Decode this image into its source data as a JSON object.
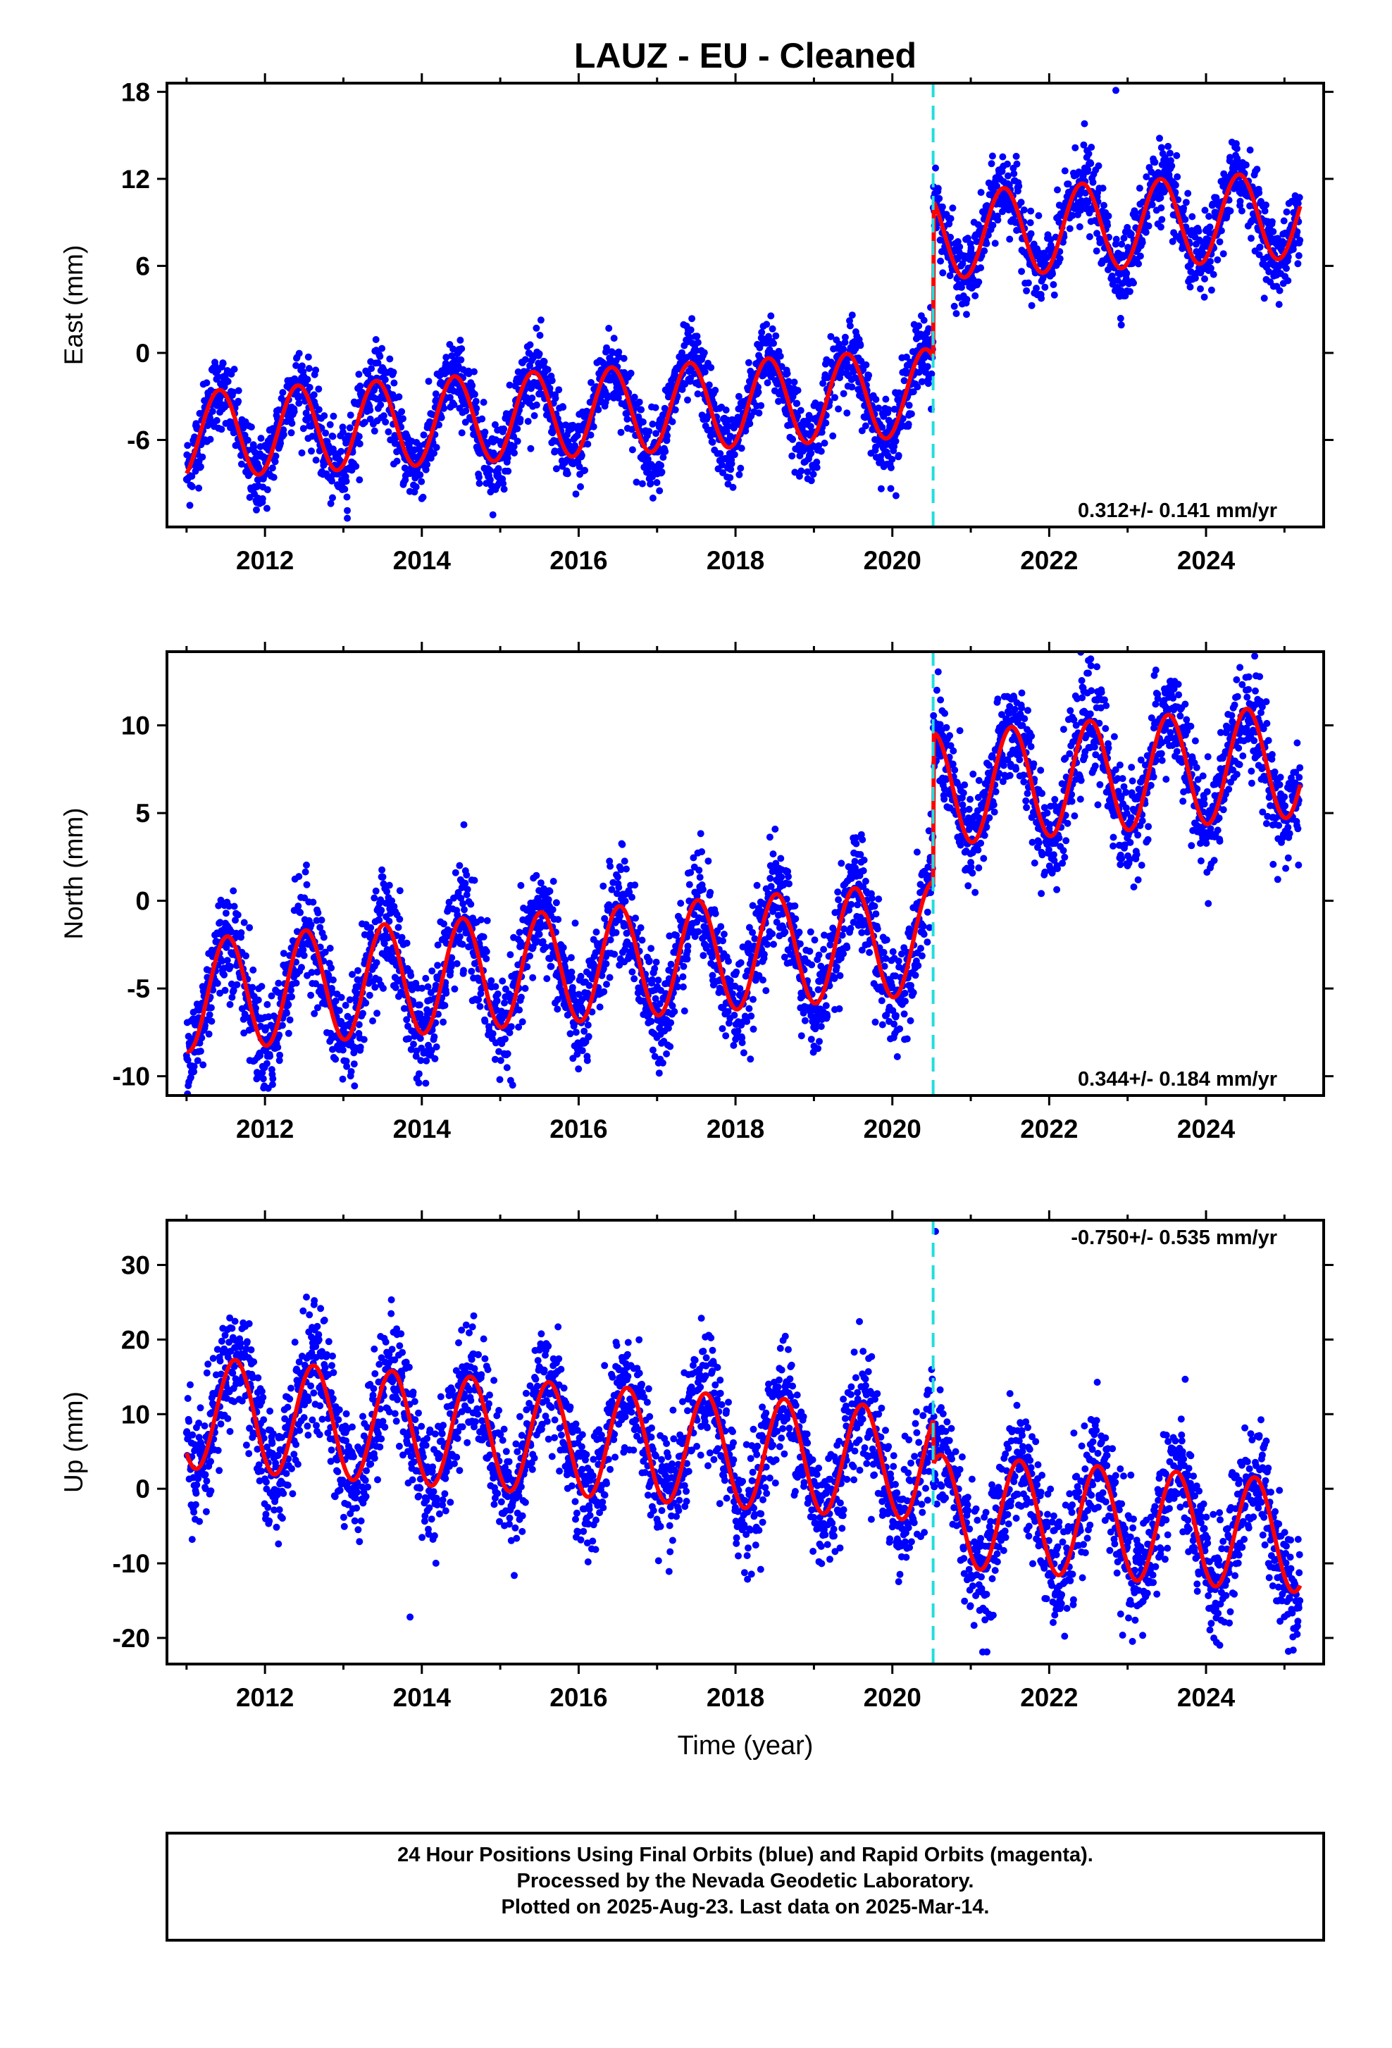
{
  "title": "LAUZ  - EU - Cleaned",
  "colors": {
    "points": "#0000ff",
    "model": "#ff0000",
    "offset_line": "#22dddd",
    "frame": "#000000"
  },
  "chart_data": [
    {
      "type": "scatter",
      "name": "east",
      "ylabel": "East (mm)",
      "xlim": [
        2010.75,
        2025.5
      ],
      "ylim": [
        -12,
        18.6
      ],
      "yticks": [
        -6,
        0,
        6,
        12,
        18
      ],
      "xticks": [
        2012,
        2014,
        2016,
        2018,
        2020,
        2022,
        2024
      ],
      "offset_epoch": 2020.52,
      "rate_text": "0.312+/- 0.141 mm/yr",
      "rate_position": "bottom-right",
      "model": {
        "start": 2011.0,
        "end": 2025.2,
        "base_before": -3.5,
        "base_after": 7.3,
        "rate": 0.312,
        "annual_amplitude": 3.0,
        "peak_phase": 0.42,
        "offset_at_event": 8.0
      },
      "scatter_sd": 1.3,
      "outliers": [
        {
          "x": 2013.05,
          "y": -11.4
        },
        {
          "x": 2022.85,
          "y": 18.1
        },
        {
          "x": 2022.45,
          "y": 15.8
        }
      ]
    },
    {
      "type": "scatter",
      "name": "north",
      "ylabel": "North (mm)",
      "xlim": [
        2010.75,
        2025.5
      ],
      "ylim": [
        -11.1,
        14.2
      ],
      "yticks": [
        -10,
        -5,
        0,
        5,
        10
      ],
      "xticks": [
        2012,
        2014,
        2016,
        2018,
        2020,
        2022,
        2024
      ],
      "offset_epoch": 2020.52,
      "rate_text": "0.344+/- 0.184 mm/yr",
      "rate_position": "bottom-right",
      "model": {
        "start": 2011.0,
        "end": 2025.2,
        "base_before": -3.0,
        "base_after": 5.5,
        "rate": 0.344,
        "annual_amplitude": 3.2,
        "peak_phase": 0.52,
        "offset_at_event": 6.0
      },
      "scatter_sd": 1.5,
      "outliers": [
        {
          "x": 2014.05,
          "y": -10.4
        },
        {
          "x": 2022.5,
          "y": 13.7
        }
      ]
    },
    {
      "type": "scatter",
      "name": "up",
      "ylabel": "Up (mm)",
      "xlabel": "Time (year)",
      "xlim": [
        2010.75,
        2025.5
      ],
      "ylim": [
        -23.5,
        36
      ],
      "yticks": [
        -20,
        -10,
        0,
        10,
        20,
        30
      ],
      "xticks": [
        2012,
        2014,
        2016,
        2018,
        2020,
        2022,
        2024
      ],
      "offset_epoch": 2020.52,
      "rate_text": "-0.750+/- 0.535 mm/yr",
      "rate_position": "top-right",
      "model": {
        "start": 2011.0,
        "end": 2025.2,
        "base_before": 5.0,
        "base_after": -1.0,
        "rate": -0.75,
        "annual_amplitude": 7.5,
        "peak_phase": 0.62,
        "offset_at_event": 0.0
      },
      "scatter_sd": 4.0,
      "outliers": [
        {
          "x": 2020.55,
          "y": 34.5
        },
        {
          "x": 2013.85,
          "y": -17.2
        },
        {
          "x": 2025.05,
          "y": -21.8
        },
        {
          "x": 2012.75,
          "y": 22.5
        }
      ]
    }
  ],
  "footer": {
    "line1": "24 Hour Positions Using Final Orbits (blue) and Rapid Orbits (magenta).",
    "line2": "Processed by the Nevada Geodetic Laboratory.",
    "line3": "Plotted on 2025-Aug-23. Last data on 2025-Mar-14."
  }
}
